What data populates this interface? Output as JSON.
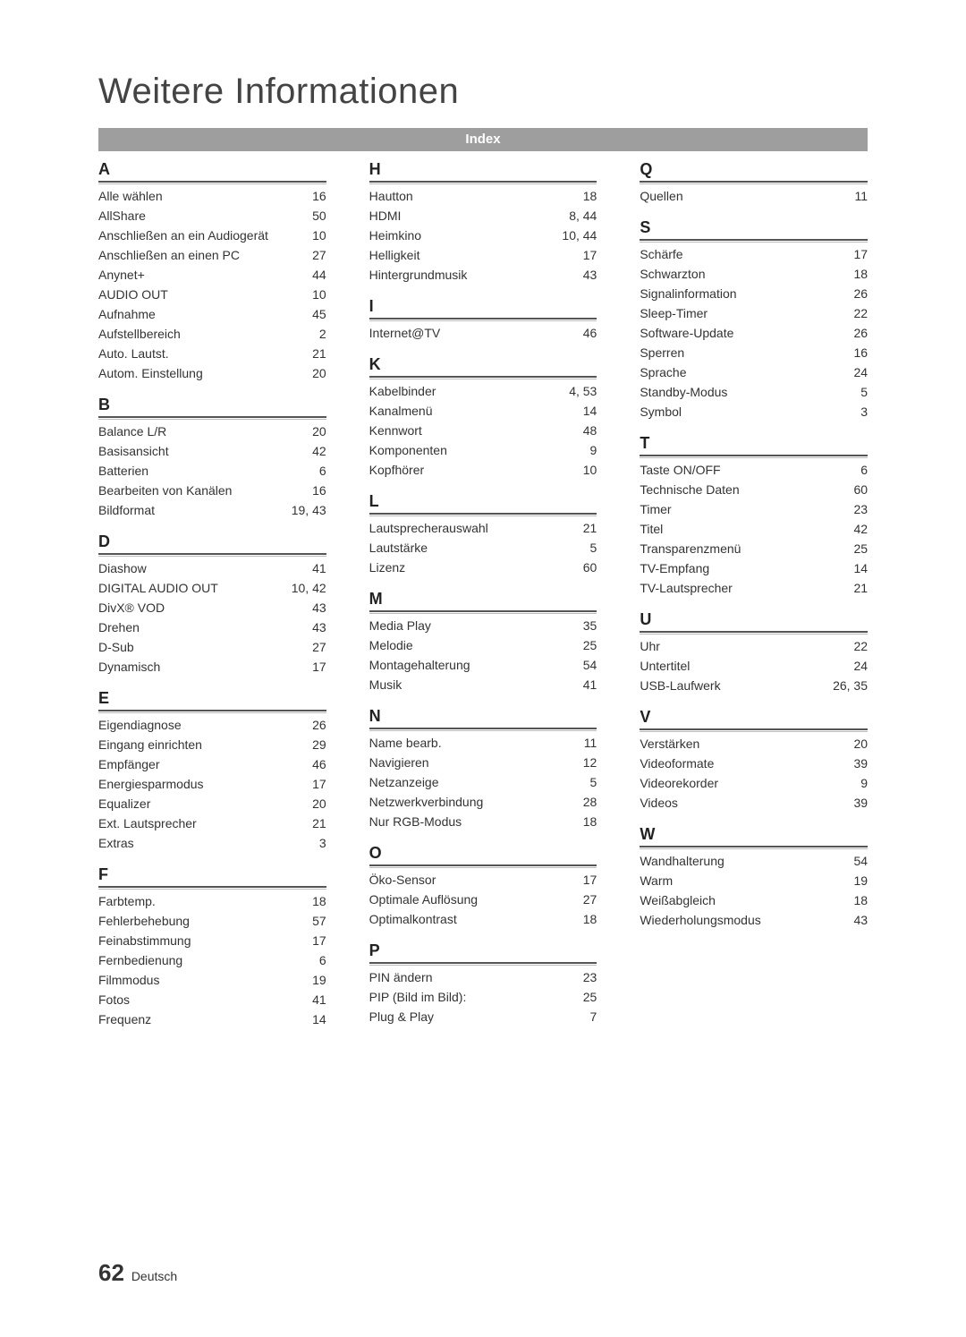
{
  "title": "Weitere Informationen",
  "indexLabel": "Index",
  "pageNumber": "62",
  "language": "Deutsch",
  "columns": [
    [
      {
        "letter": "A",
        "entries": [
          {
            "term": "Alle wählen",
            "pages": "16"
          },
          {
            "term": "AllShare",
            "pages": "50"
          },
          {
            "term": "Anschließen an ein Audiogerät",
            "pages": "10"
          },
          {
            "term": "Anschließen an einen PC",
            "pages": "27"
          },
          {
            "term": "Anynet+",
            "pages": "44"
          },
          {
            "term": "AUDIO OUT",
            "pages": "10"
          },
          {
            "term": "Aufnahme",
            "pages": "45"
          },
          {
            "term": "Aufstellbereich",
            "pages": "2"
          },
          {
            "term": "Auto. Lautst.",
            "pages": "21"
          },
          {
            "term": "Autom. Einstellung",
            "pages": "20"
          }
        ]
      },
      {
        "letter": "B",
        "entries": [
          {
            "term": "Balance L/R",
            "pages": "20"
          },
          {
            "term": "Basisansicht",
            "pages": "42"
          },
          {
            "term": "Batterien",
            "pages": "6"
          },
          {
            "term": "Bearbeiten von Kanälen",
            "pages": "16"
          },
          {
            "term": "Bildformat",
            "pages": "19, 43"
          }
        ]
      },
      {
        "letter": "D",
        "entries": [
          {
            "term": "Diashow",
            "pages": "41"
          },
          {
            "term": "DIGITAL AUDIO OUT",
            "pages": "10, 42"
          },
          {
            "term": "DivX® VOD",
            "pages": "43"
          },
          {
            "term": "Drehen",
            "pages": "43"
          },
          {
            "term": "D-Sub",
            "pages": "27"
          },
          {
            "term": "Dynamisch",
            "pages": "17"
          }
        ]
      },
      {
        "letter": "E",
        "entries": [
          {
            "term": "Eigendiagnose",
            "pages": "26"
          },
          {
            "term": "Eingang einrichten",
            "pages": "29"
          },
          {
            "term": "Empfänger",
            "pages": "46"
          },
          {
            "term": "Energiesparmodus",
            "pages": "17"
          },
          {
            "term": "Equalizer",
            "pages": "20"
          },
          {
            "term": "Ext. Lautsprecher",
            "pages": "21"
          },
          {
            "term": "Extras",
            "pages": "3"
          }
        ]
      },
      {
        "letter": "F",
        "entries": [
          {
            "term": "Farbtemp.",
            "pages": "18"
          },
          {
            "term": "Fehlerbehebung",
            "pages": "57"
          },
          {
            "term": "Feinabstimmung",
            "pages": "17"
          },
          {
            "term": "Fernbedienung",
            "pages": "6"
          },
          {
            "term": "Filmmodus",
            "pages": "19"
          },
          {
            "term": "Fotos",
            "pages": "41"
          },
          {
            "term": "Frequenz",
            "pages": "14"
          }
        ]
      }
    ],
    [
      {
        "letter": "H",
        "entries": [
          {
            "term": "Hautton",
            "pages": "18"
          },
          {
            "term": "HDMI",
            "pages": "8, 44"
          },
          {
            "term": "Heimkino",
            "pages": "10, 44"
          },
          {
            "term": "Helligkeit",
            "pages": "17"
          },
          {
            "term": "Hintergrundmusik",
            "pages": "43"
          }
        ]
      },
      {
        "letter": "I",
        "entries": [
          {
            "term": "Internet@TV",
            "pages": "46"
          }
        ]
      },
      {
        "letter": "K",
        "entries": [
          {
            "term": "Kabelbinder",
            "pages": "4, 53"
          },
          {
            "term": "Kanalmenü",
            "pages": "14"
          },
          {
            "term": "Kennwort",
            "pages": "48"
          },
          {
            "term": "Komponenten",
            "pages": "9"
          },
          {
            "term": "Kopfhörer",
            "pages": "10"
          }
        ]
      },
      {
        "letter": "L",
        "entries": [
          {
            "term": "Lautsprecherauswahl",
            "pages": "21"
          },
          {
            "term": "Lautstärke",
            "pages": "5"
          },
          {
            "term": "Lizenz",
            "pages": "60"
          }
        ]
      },
      {
        "letter": "M",
        "entries": [
          {
            "term": "Media Play",
            "pages": "35"
          },
          {
            "term": "Melodie",
            "pages": "25"
          },
          {
            "term": "Montagehalterung",
            "pages": "54"
          },
          {
            "term": "Musik",
            "pages": "41"
          }
        ]
      },
      {
        "letter": "N",
        "entries": [
          {
            "term": "Name bearb.",
            "pages": "11"
          },
          {
            "term": "Navigieren",
            "pages": "12"
          },
          {
            "term": "Netzanzeige",
            "pages": "5"
          },
          {
            "term": "Netzwerkverbindung",
            "pages": "28"
          },
          {
            "term": "Nur RGB-Modus",
            "pages": "18"
          }
        ]
      },
      {
        "letter": "O",
        "entries": [
          {
            "term": "Öko-Sensor",
            "pages": "17"
          },
          {
            "term": "Optimale Auflösung",
            "pages": "27"
          },
          {
            "term": "Optimalkontrast",
            "pages": "18"
          }
        ]
      },
      {
        "letter": "P",
        "entries": [
          {
            "term": "PIN ändern",
            "pages": "23"
          },
          {
            "term": "PIP (Bild im Bild):",
            "pages": "25"
          },
          {
            "term": "Plug & Play",
            "pages": "7"
          }
        ]
      }
    ],
    [
      {
        "letter": "Q",
        "entries": [
          {
            "term": "Quellen",
            "pages": "11"
          }
        ]
      },
      {
        "letter": "S",
        "entries": [
          {
            "term": "Schärfe",
            "pages": "17"
          },
          {
            "term": "Schwarzton",
            "pages": "18"
          },
          {
            "term": "Signalinformation",
            "pages": "26"
          },
          {
            "term": "Sleep-Timer",
            "pages": "22"
          },
          {
            "term": "Software-Update",
            "pages": "26"
          },
          {
            "term": "Sperren",
            "pages": "16"
          },
          {
            "term": "Sprache",
            "pages": "24"
          },
          {
            "term": "Standby-Modus",
            "pages": "5"
          },
          {
            "term": "Symbol",
            "pages": "3"
          }
        ]
      },
      {
        "letter": "T",
        "entries": [
          {
            "term": "Taste ON/OFF",
            "pages": "6"
          },
          {
            "term": "Technische Daten",
            "pages": "60"
          },
          {
            "term": "Timer",
            "pages": "23"
          },
          {
            "term": "Titel",
            "pages": "42"
          },
          {
            "term": "Transparenzmenü",
            "pages": "25"
          },
          {
            "term": "TV-Empfang",
            "pages": "14"
          },
          {
            "term": "TV-Lautsprecher",
            "pages": "21"
          }
        ]
      },
      {
        "letter": "U",
        "entries": [
          {
            "term": "Uhr",
            "pages": "22"
          },
          {
            "term": "Untertitel",
            "pages": "24"
          },
          {
            "term": "USB-Laufwerk",
            "pages": "26, 35"
          }
        ]
      },
      {
        "letter": "V",
        "entries": [
          {
            "term": "Verstärken",
            "pages": "20"
          },
          {
            "term": "Videoformate",
            "pages": "39"
          },
          {
            "term": "Videorekorder",
            "pages": "9"
          },
          {
            "term": "Videos",
            "pages": "39"
          }
        ]
      },
      {
        "letter": "W",
        "entries": [
          {
            "term": "Wandhalterung",
            "pages": "54"
          },
          {
            "term": "Warm",
            "pages": "19"
          },
          {
            "term": "Weißabgleich",
            "pages": "18"
          },
          {
            "term": "Wiederholungsmodus",
            "pages": "43"
          }
        ]
      }
    ]
  ]
}
